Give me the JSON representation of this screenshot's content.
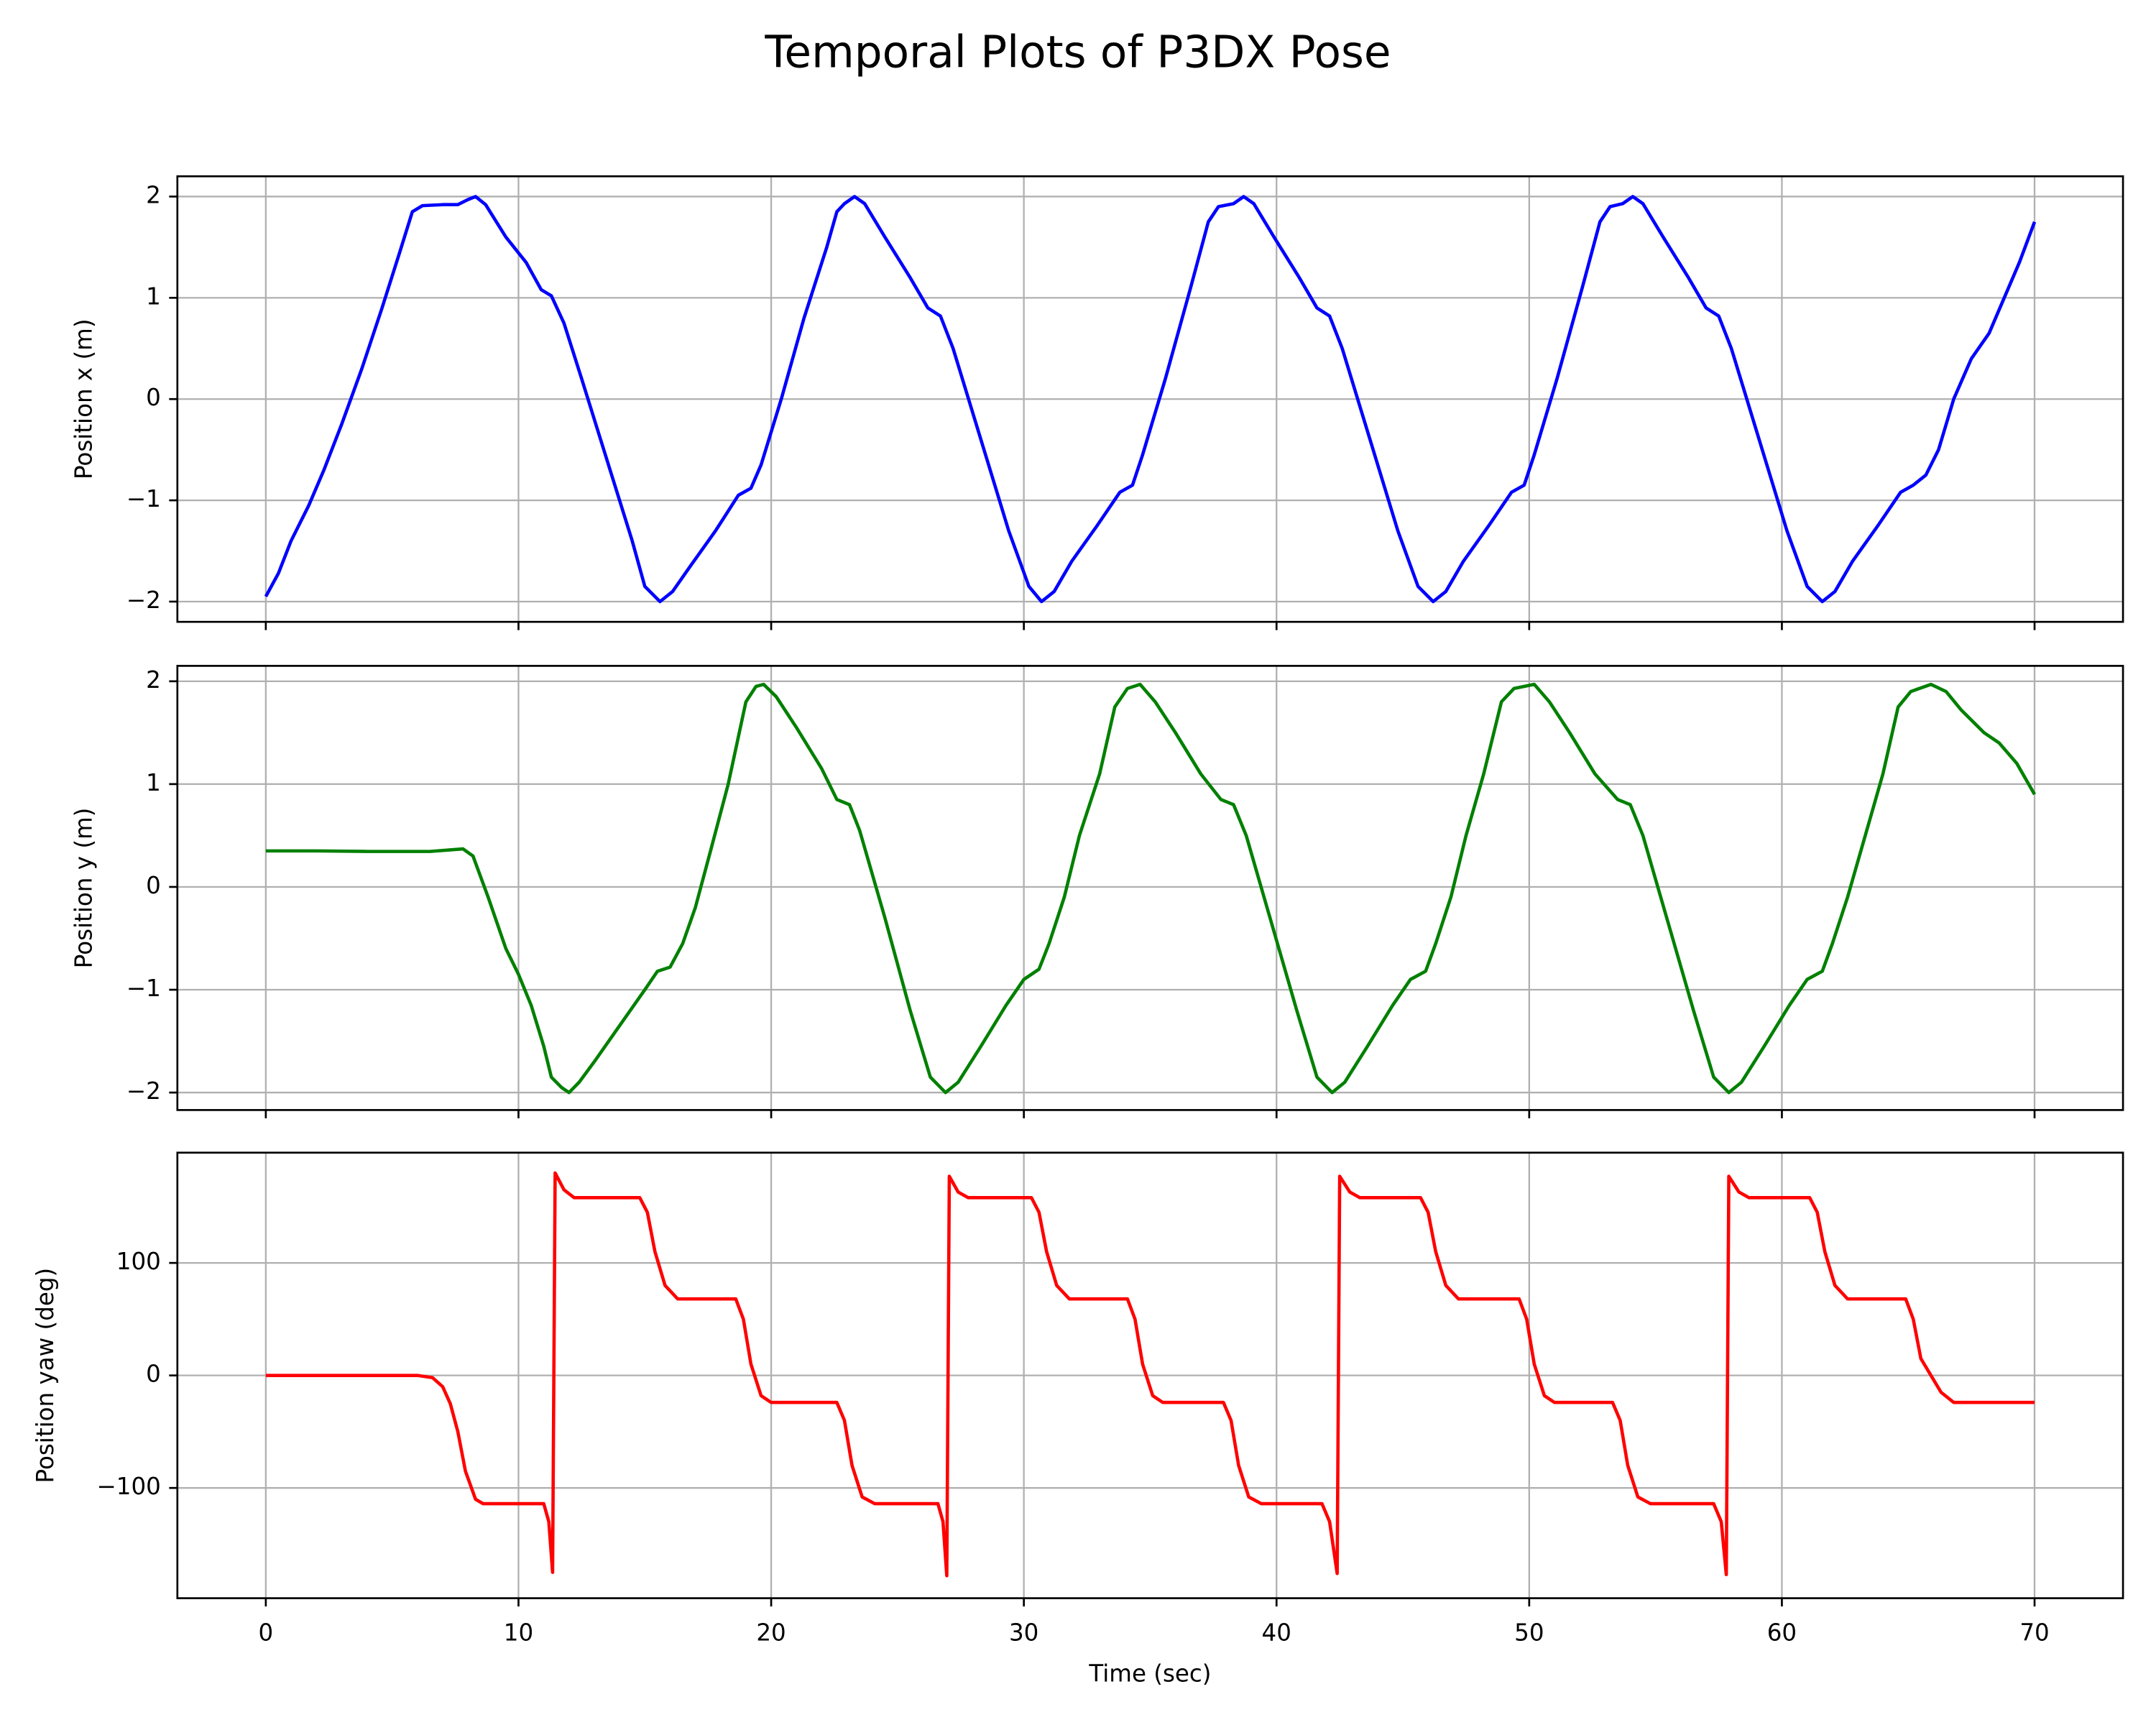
{
  "title": "Temporal Plots of P3DX Pose",
  "chart_data": [
    {
      "type": "line",
      "ylabel": "Position x (m)",
      "color": "#0000ff",
      "grid": true,
      "xlim": [
        -3.5,
        73.5
      ],
      "ylim": [
        -2.2,
        2.2
      ],
      "xticks": [
        0,
        10,
        20,
        30,
        40,
        50,
        60,
        70
      ],
      "yticks": [
        {
          "value": -2,
          "label": "−2"
        },
        {
          "value": -1,
          "label": "−1"
        },
        0,
        1,
        2
      ],
      "x": [
        0,
        0.5,
        1,
        1.7,
        2.3,
        3,
        3.8,
        4.6,
        5.3,
        5.8,
        6.2,
        7,
        7.6,
        8,
        8.3,
        8.7,
        9.5,
        10.3,
        10.9,
        11.3,
        11.8,
        12.5,
        13.5,
        14.5,
        15,
        15.6,
        16.1,
        16.8,
        17.8,
        18.7,
        19.2,
        19.6,
        20.4,
        21.3,
        22.2,
        22.6,
        22.9,
        23.3,
        23.7,
        24.5,
        25.5,
        26.2,
        26.7,
        27.2,
        28.3,
        29.4,
        30.2,
        30.7,
        31.2,
        31.9,
        32.9,
        33.8,
        34.3,
        34.7,
        35.6,
        36.6,
        37.3,
        37.7,
        38.3,
        38.7,
        39.1,
        39.9,
        40.9,
        41.6,
        42.1,
        42.6,
        43.7,
        44.8,
        45.6,
        46.2,
        46.7,
        47.4,
        48.4,
        49.3,
        49.8,
        50.2,
        51.1,
        52.1,
        52.8,
        53.2,
        53.7,
        54.1,
        54.5,
        55.3,
        56.3,
        57,
        57.5,
        58,
        59.1,
        60.2,
        61,
        61.6,
        62.1,
        62.8,
        63.8,
        64.7,
        65.2,
        65.7,
        66.2,
        66.8,
        67.5,
        68.2,
        68.8,
        69.4,
        70
      ],
      "values": [
        -1.95,
        -1.72,
        -1.4,
        -1.05,
        -0.7,
        -0.25,
        0.3,
        0.9,
        1.45,
        1.85,
        1.91,
        1.92,
        1.92,
        1.97,
        2.0,
        1.92,
        1.6,
        1.35,
        1.08,
        1.02,
        0.75,
        0.2,
        -0.6,
        -1.4,
        -1.85,
        -2.0,
        -1.9,
        -1.65,
        -1.3,
        -0.95,
        -0.88,
        -0.65,
        0,
        0.8,
        1.5,
        1.85,
        1.93,
        2.0,
        1.93,
        1.6,
        1.2,
        0.9,
        0.82,
        0.5,
        -0.4,
        -1.3,
        -1.85,
        -2.0,
        -1.9,
        -1.6,
        -1.25,
        -0.92,
        -0.85,
        -0.55,
        0.2,
        1.1,
        1.75,
        1.9,
        1.93,
        2.0,
        1.93,
        1.6,
        1.2,
        0.9,
        0.82,
        0.5,
        -0.4,
        -1.3,
        -1.85,
        -2.0,
        -1.9,
        -1.6,
        -1.25,
        -0.92,
        -0.85,
        -0.55,
        0.2,
        1.1,
        1.75,
        1.9,
        1.93,
        2.0,
        1.93,
        1.6,
        1.2,
        0.9,
        0.82,
        0.5,
        -0.4,
        -1.3,
        -1.85,
        -2.0,
        -1.9,
        -1.6,
        -1.25,
        -0.92,
        -0.85,
        -0.75,
        -0.5,
        0,
        0.4,
        0.65,
        1.0,
        1.35,
        1.75
      ]
    },
    {
      "type": "line",
      "ylabel": "Position y (m)",
      "color": "#008000",
      "grid": true,
      "xlim": [
        -3.5,
        73.5
      ],
      "ylim": [
        -2.17,
        2.15
      ],
      "xticks": [
        0,
        10,
        20,
        30,
        40,
        50,
        60,
        70
      ],
      "yticks": [
        {
          "value": -2,
          "label": "−2"
        },
        {
          "value": -1,
          "label": "−1"
        },
        0,
        1,
        2
      ],
      "x": [
        0,
        2,
        4,
        6.5,
        7.3,
        7.8,
        8.2,
        8.8,
        9.5,
        10,
        10.5,
        11,
        11.3,
        11.7,
        12,
        12.4,
        13,
        14,
        15,
        15.5,
        16,
        16.5,
        17,
        17.6,
        18.3,
        19,
        19.4,
        19.7,
        20.2,
        21,
        22,
        22.6,
        23.1,
        23.5,
        24.5,
        25.5,
        26.3,
        26.9,
        27.4,
        28.3,
        29.3,
        30,
        30.6,
        31,
        31.6,
        32.2,
        33,
        33.6,
        34.1,
        34.6,
        35.2,
        36,
        37,
        37.8,
        38.3,
        38.8,
        39.8,
        40.8,
        41.6,
        42.2,
        42.7,
        43.6,
        44.6,
        45.3,
        45.9,
        46.3,
        46.9,
        47.5,
        48.2,
        48.9,
        49.4,
        50.2,
        50.8,
        51.6,
        52.6,
        53.5,
        54,
        54.5,
        55.5,
        56.5,
        57.3,
        57.9,
        58.4,
        59.3,
        60.3,
        61,
        61.6,
        62,
        62.6,
        63.3,
        64,
        64.6,
        65.1,
        65.9,
        66.5,
        67.1,
        68,
        68.6,
        69.3,
        70
      ],
      "values": [
        0.35,
        0.35,
        0.345,
        0.345,
        0.36,
        0.37,
        0.3,
        -0.1,
        -0.6,
        -0.85,
        -1.15,
        -1.55,
        -1.85,
        -1.95,
        -2.0,
        -1.9,
        -1.7,
        -1.35,
        -1.0,
        -0.82,
        -0.78,
        -0.55,
        -0.2,
        0.35,
        1.0,
        1.8,
        1.95,
        1.97,
        1.85,
        1.55,
        1.15,
        0.85,
        0.8,
        0.55,
        -0.3,
        -1.2,
        -1.85,
        -2.0,
        -1.9,
        -1.55,
        -1.15,
        -0.9,
        -0.8,
        -0.55,
        -0.1,
        0.5,
        1.1,
        1.75,
        1.93,
        1.97,
        1.8,
        1.5,
        1.1,
        0.85,
        0.8,
        0.5,
        -0.35,
        -1.2,
        -1.85,
        -2.0,
        -1.9,
        -1.55,
        -1.15,
        -0.9,
        -0.82,
        -0.55,
        -0.1,
        0.5,
        1.1,
        1.8,
        1.93,
        1.97,
        1.8,
        1.5,
        1.1,
        0.85,
        0.8,
        0.5,
        -0.35,
        -1.2,
        -1.85,
        -2.0,
        -1.9,
        -1.55,
        -1.15,
        -0.9,
        -0.82,
        -0.55,
        -0.1,
        0.5,
        1.1,
        1.75,
        1.9,
        1.97,
        1.9,
        1.72,
        1.5,
        1.4,
        1.2,
        0.9
      ]
    },
    {
      "type": "line",
      "ylabel": "Position yaw (deg)",
      "xlabel": "Time (sec)",
      "color": "#ff0000",
      "grid": true,
      "xlim": [
        -3.5,
        73.5
      ],
      "ylim": [
        -198,
        198
      ],
      "xticks": [
        0,
        10,
        20,
        30,
        40,
        50,
        60,
        70
      ],
      "yticks": [
        {
          "value": -100,
          "label": "−100"
        },
        0,
        100
      ],
      "x": [
        0,
        6,
        6.6,
        7,
        7.3,
        7.6,
        7.9,
        8.3,
        8.6,
        11,
        11.2,
        11.35,
        11.45,
        11.8,
        12.2,
        14.8,
        15.1,
        15.4,
        15.8,
        16.3,
        18.6,
        18.9,
        19.2,
        19.6,
        20,
        22.6,
        22.9,
        23.2,
        23.6,
        24.1,
        26.6,
        26.8,
        26.95,
        27.05,
        27.4,
        27.8,
        30.3,
        30.6,
        30.9,
        31.3,
        31.8,
        34.1,
        34.4,
        34.7,
        35.1,
        35.5,
        37.9,
        38.2,
        38.5,
        38.9,
        39.4,
        41.8,
        42.1,
        42.4,
        42.5,
        42.9,
        43.3,
        45.7,
        46,
        46.3,
        46.7,
        47.2,
        49.6,
        49.9,
        50.2,
        50.6,
        51,
        53.3,
        53.6,
        53.9,
        54.3,
        54.8,
        57.3,
        57.6,
        57.8,
        57.9,
        58.3,
        58.7,
        61.1,
        61.4,
        61.7,
        62.1,
        62.6,
        64.9,
        65.2,
        65.5,
        65.9,
        66.3,
        66.8,
        70
      ],
      "values": [
        0,
        0,
        -2,
        -10,
        -25,
        -50,
        -85,
        -110,
        -114,
        -114,
        -130,
        -175,
        180,
        165,
        158,
        158,
        145,
        110,
        80,
        68,
        68,
        50,
        10,
        -18,
        -24,
        -24,
        -40,
        -80,
        -108,
        -114,
        -114,
        -130,
        -178,
        177,
        163,
        158,
        158,
        145,
        110,
        80,
        68,
        68,
        50,
        10,
        -18,
        -24,
        -24,
        -40,
        -80,
        -108,
        -114,
        -114,
        -130,
        -176,
        177,
        163,
        158,
        158,
        145,
        110,
        80,
        68,
        68,
        50,
        10,
        -18,
        -24,
        -24,
        -40,
        -80,
        -108,
        -114,
        -114,
        -130,
        -177,
        177,
        163,
        158,
        158,
        145,
        110,
        80,
        68,
        68,
        50,
        15,
        0,
        -15,
        -24,
        -24
      ]
    }
  ]
}
